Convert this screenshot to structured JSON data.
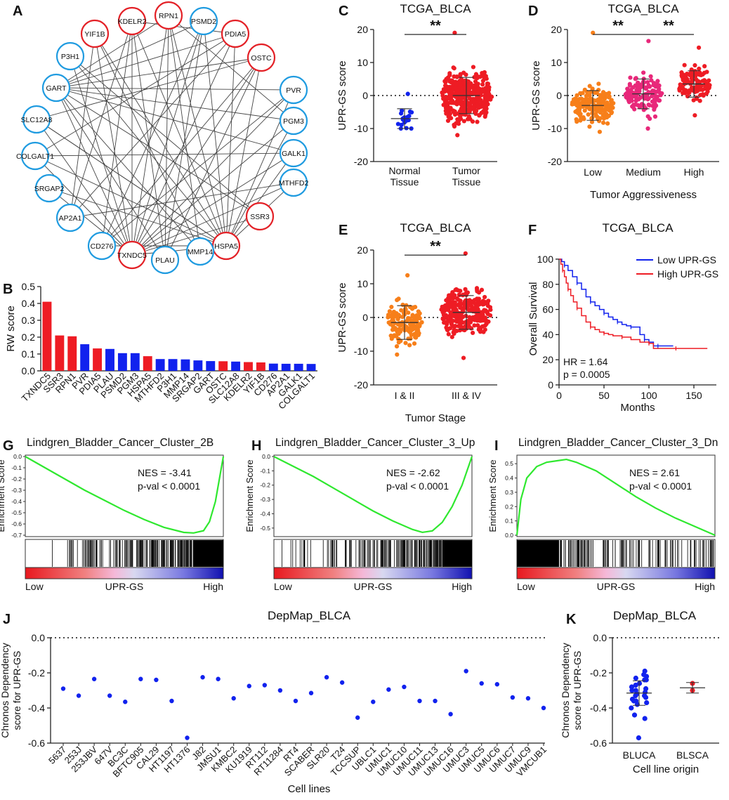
{
  "colors": {
    "red": "#ee1c24",
    "blue": "#1122ee",
    "orange": "#f77f1a",
    "pink": "#e8287a",
    "nodeBlue": "#1f9be0",
    "nodeRed": "#e32026",
    "green": "#2fe82f",
    "axis": "#222222"
  },
  "chart_data": [
    {
      "panel": "A",
      "type": "network",
      "label": "A",
      "nodes": [
        {
          "name": "RPN1",
          "group": "high"
        },
        {
          "name": "PSMD2",
          "group": "low"
        },
        {
          "name": "PDIA5",
          "group": "high"
        },
        {
          "name": "OSTC",
          "group": "high"
        },
        {
          "name": "PVR",
          "group": "low"
        },
        {
          "name": "PGM3",
          "group": "low"
        },
        {
          "name": "GALK1",
          "group": "low"
        },
        {
          "name": "MTHFD2",
          "group": "low"
        },
        {
          "name": "SSR3",
          "group": "high"
        },
        {
          "name": "HSPA5",
          "group": "high"
        },
        {
          "name": "MMP14",
          "group": "low"
        },
        {
          "name": "PLAU",
          "group": "low"
        },
        {
          "name": "TXNDC5",
          "group": "high"
        },
        {
          "name": "CD276",
          "group": "low"
        },
        {
          "name": "AP2A1",
          "group": "low"
        },
        {
          "name": "SRGAP2",
          "group": "low"
        },
        {
          "name": "COLGALT1",
          "group": "low"
        },
        {
          "name": "SLC12A8",
          "group": "low"
        },
        {
          "name": "GART",
          "group": "low"
        },
        {
          "name": "P3H1",
          "group": "low"
        },
        {
          "name": "YIF1B",
          "group": "high"
        },
        {
          "name": "KDELR2",
          "group": "high"
        }
      ],
      "edges": [
        [
          0,
          12
        ],
        [
          0,
          9
        ],
        [
          0,
          18
        ],
        [
          0,
          5
        ],
        [
          0,
          11
        ],
        [
          1,
          12
        ],
        [
          1,
          18
        ],
        [
          1,
          9
        ],
        [
          1,
          13
        ],
        [
          2,
          12
        ],
        [
          2,
          9
        ],
        [
          2,
          18
        ],
        [
          2,
          16
        ],
        [
          2,
          14
        ],
        [
          3,
          12
        ],
        [
          3,
          9
        ],
        [
          3,
          18
        ],
        [
          3,
          17
        ],
        [
          3,
          11
        ],
        [
          4,
          18
        ],
        [
          4,
          12
        ],
        [
          4,
          9
        ],
        [
          5,
          18
        ],
        [
          5,
          12
        ],
        [
          5,
          9
        ],
        [
          6,
          12
        ],
        [
          6,
          9
        ],
        [
          6,
          18
        ],
        [
          7,
          12
        ],
        [
          7,
          9
        ],
        [
          8,
          12
        ],
        [
          8,
          18
        ],
        [
          8,
          19
        ],
        [
          9,
          12
        ],
        [
          9,
          19
        ],
        [
          9,
          15
        ],
        [
          9,
          17
        ],
        [
          10,
          18
        ],
        [
          10,
          20
        ],
        [
          11,
          21
        ],
        [
          11,
          18
        ],
        [
          13,
          21
        ],
        [
          13,
          9
        ],
        [
          14,
          21
        ],
        [
          14,
          20
        ],
        [
          15,
          12
        ],
        [
          16,
          12
        ],
        [
          16,
          9
        ],
        [
          17,
          9
        ],
        [
          17,
          12
        ],
        [
          18,
          12
        ],
        [
          19,
          12
        ],
        [
          20,
          12
        ],
        [
          20,
          9
        ],
        [
          21,
          12
        ],
        [
          21,
          9
        ],
        [
          21,
          2
        ],
        [
          0,
          10
        ],
        [
          1,
          11
        ],
        [
          3,
          13
        ],
        [
          4,
          13
        ],
        [
          6,
          16
        ],
        [
          7,
          14
        ]
      ]
    },
    {
      "panel": "B",
      "type": "bar",
      "label": "B",
      "ylabel": "RW score",
      "ylim": [
        0,
        0.5
      ],
      "yticks": [
        "0.0",
        "0.1",
        "0.2",
        "0.3",
        "0.4",
        "0.5"
      ],
      "categories": [
        "TXNDC5",
        "SSR3",
        "RPN1",
        "PVR",
        "PDIA5",
        "PLAU",
        "PSMD2",
        "PGM3",
        "HSPA5",
        "MTHFD2",
        "P3H1",
        "MMP14",
        "SRGAP2",
        "GART",
        "OSTC",
        "SLC12A8",
        "KDELR2",
        "YIF1B",
        "CD276",
        "AP2A1",
        "GALK1",
        "COLGALT1"
      ],
      "values": [
        0.41,
        0.21,
        0.205,
        0.158,
        0.133,
        0.13,
        0.105,
        0.105,
        0.087,
        0.07,
        0.07,
        0.068,
        0.062,
        0.058,
        0.057,
        0.055,
        0.052,
        0.05,
        0.043,
        0.042,
        0.042,
        0.041
      ],
      "groups": [
        "high",
        "high",
        "high",
        "low",
        "high",
        "low",
        "low",
        "low",
        "high",
        "low",
        "low",
        "low",
        "low",
        "low",
        "high",
        "low",
        "high",
        "high",
        "low",
        "low",
        "low",
        "low"
      ]
    },
    {
      "panel": "C",
      "type": "scatter",
      "label": "C",
      "title": "TCGA_BLCA",
      "ylabel": "UPR-GS score",
      "ylim": [
        -20,
        20
      ],
      "yticks": [
        "-20",
        "-10",
        "0",
        "10",
        "20"
      ],
      "categories": [
        "Normal Tissue",
        "Tumor Tissue"
      ],
      "sig": "**",
      "groups": [
        {
          "name": "Normal Tissue",
          "mean": -7,
          "sd": 3,
          "n": 19,
          "min": -10,
          "max": 0.5,
          "color": "blue"
        },
        {
          "name": "Tumor Tissue",
          "mean": 0,
          "sd": 5.5,
          "n": 400,
          "min": -12,
          "max": 19,
          "color": "red"
        }
      ]
    },
    {
      "panel": "D",
      "type": "scatter",
      "label": "D",
      "title": "TCGA_BLCA",
      "ylabel": "UPR-GS score",
      "xlabel": "Tumor Aggressiveness",
      "ylim": [
        -20,
        20
      ],
      "yticks": [
        "-20",
        "-10",
        "0",
        "10",
        "20"
      ],
      "categories": [
        "Low",
        "Medium",
        "High"
      ],
      "sig": [
        "**",
        "**"
      ],
      "groups": [
        {
          "name": "Low",
          "mean": -3,
          "sd": 4.5,
          "n": 170,
          "min": -11,
          "max": 19,
          "color": "orange"
        },
        {
          "name": "Medium",
          "mean": 0.5,
          "sd": 4.5,
          "n": 140,
          "min": -10,
          "max": 16.5,
          "color": "pink"
        },
        {
          "name": "High",
          "mean": 3.5,
          "sd": 4,
          "n": 110,
          "min": -6,
          "max": 14.5,
          "color": "red"
        }
      ]
    },
    {
      "panel": "E",
      "type": "scatter",
      "label": "E",
      "title": "TCGA_BLCA",
      "ylabel": "UPR-GS score",
      "xlabel": "Tumor Stage",
      "ylim": [
        -20,
        20
      ],
      "yticks": [
        "-20",
        "-10",
        "0",
        "10",
        "20"
      ],
      "categories": [
        "I & II",
        "III & IV"
      ],
      "sig": "**",
      "groups": [
        {
          "name": "I & II",
          "mean": -1.5,
          "sd": 5,
          "n": 130,
          "min": -11,
          "max": 12.5,
          "color": "orange"
        },
        {
          "name": "III & IV",
          "mean": 1.5,
          "sd": 5,
          "n": 280,
          "min": -12,
          "max": 19,
          "color": "red"
        }
      ]
    },
    {
      "panel": "F",
      "type": "line",
      "label": "F",
      "title": "TCGA_BLCA",
      "ylabel": "Overall Survival",
      "xlabel": "Months",
      "xlim": [
        0,
        175
      ],
      "ylim": [
        0,
        105
      ],
      "xticks": [
        "0",
        "50",
        "100",
        "150"
      ],
      "yticks": [
        "0",
        "20",
        "40",
        "60",
        "80",
        "100"
      ],
      "hr": "HR = 1.64",
      "p": "p = 0.0005",
      "series": [
        {
          "name": "Low UPR-GS",
          "color": "blue",
          "x": [
            0,
            3,
            6,
            10,
            15,
            20,
            25,
            30,
            35,
            40,
            45,
            50,
            55,
            60,
            65,
            70,
            75,
            80,
            85,
            90,
            95,
            100,
            105,
            110,
            120,
            127
          ],
          "y": [
            100,
            98,
            95,
            91,
            86,
            81,
            76,
            70,
            66,
            63,
            60,
            57,
            54,
            52,
            50,
            48,
            47,
            46,
            46,
            40,
            36,
            34,
            31,
            31,
            31,
            31
          ]
        },
        {
          "name": "High UPR-GS",
          "color": "red",
          "x": [
            0,
            2,
            4,
            6,
            8,
            10,
            13,
            16,
            20,
            25,
            30,
            35,
            40,
            45,
            50,
            55,
            60,
            70,
            80,
            90,
            100,
            105,
            115,
            130,
            150,
            165
          ],
          "y": [
            100,
            96,
            91,
            86,
            81,
            76,
            71,
            66,
            61,
            55,
            50,
            46,
            44,
            42,
            41,
            40,
            39,
            38,
            36,
            34,
            33,
            29,
            29,
            29,
            29,
            29
          ]
        }
      ]
    },
    {
      "panel": "G",
      "type": "line",
      "label": "G",
      "title": "Lindgren_Bladder_Cancer_Cluster_2B",
      "ylabel": "Enrichment Score",
      "nes": "NES = -3.41",
      "pval": "p-val  < 0.0001",
      "ylim": [
        -0.7,
        0
      ],
      "yticks": [
        "0.0",
        "-0.1",
        "-0.2",
        "-0.3",
        "-0.4",
        "-0.5",
        "-0.6",
        "-0.7"
      ],
      "xlow": "Low",
      "xmid": "UPR-GS",
      "xhigh": "High",
      "x": [
        0,
        0.1,
        0.2,
        0.3,
        0.4,
        0.5,
        0.6,
        0.7,
        0.8,
        0.85,
        0.9,
        0.93,
        0.96,
        1.0
      ],
      "values": [
        0,
        -0.1,
        -0.2,
        -0.3,
        -0.39,
        -0.48,
        -0.56,
        -0.63,
        -0.675,
        -0.68,
        -0.66,
        -0.58,
        -0.4,
        0
      ]
    },
    {
      "panel": "H",
      "type": "line",
      "label": "H",
      "title": "Lindgren_Bladder_Cancer_Cluster_3_Up",
      "ylabel": "Enrichment Score",
      "nes": "NES = -2.62",
      "pval": "p-val  < 0.0001",
      "ylim": [
        -0.55,
        0
      ],
      "yticks": [
        "0.0",
        "-0.1",
        "-0.2",
        "-0.3",
        "-0.4",
        "-0.5"
      ],
      "xlow": "Low",
      "xmid": "UPR-GS",
      "xhigh": "High",
      "x": [
        0,
        0.1,
        0.2,
        0.3,
        0.4,
        0.5,
        0.6,
        0.7,
        0.75,
        0.8,
        0.85,
        0.9,
        0.95,
        1.0
      ],
      "values": [
        0,
        -0.07,
        -0.14,
        -0.22,
        -0.3,
        -0.38,
        -0.45,
        -0.51,
        -0.53,
        -0.52,
        -0.46,
        -0.35,
        -0.2,
        0
      ]
    },
    {
      "panel": "I",
      "type": "line",
      "label": "I",
      "title": "Lindgren_Bladder_Cancer_Cluster_3_Dn",
      "ylabel": "Enrichment Score",
      "nes": "NES = 2.61",
      "pval": "p-val  < 0.0001",
      "ylim": [
        0,
        0.55
      ],
      "yticks": [
        "0.0",
        "0.1",
        "0.2",
        "0.3",
        "0.4",
        "0.5"
      ],
      "xlow": "Low",
      "xmid": "UPR-GS",
      "xhigh": "High",
      "x": [
        0,
        0.02,
        0.05,
        0.1,
        0.15,
        0.2,
        0.25,
        0.3,
        0.4,
        0.5,
        0.6,
        0.7,
        0.8,
        0.9,
        0.95,
        1.0
      ],
      "values": [
        0,
        0.25,
        0.4,
        0.48,
        0.51,
        0.52,
        0.53,
        0.51,
        0.45,
        0.36,
        0.27,
        0.19,
        0.12,
        0.06,
        0.03,
        0
      ]
    },
    {
      "panel": "J",
      "type": "scatter",
      "label": "J",
      "title": "DepMap_BLCA",
      "ylabel": "Chronos Dependency score for UPR-GS",
      "xlabel": "Cell lines",
      "ylim": [
        -0.6,
        0
      ],
      "yticks": [
        "0.0",
        "-0.2",
        "-0.4",
        "-0.6"
      ],
      "categories": [
        "5637",
        "253J",
        "253JBV",
        "647V",
        "BC3C",
        "BFTC905",
        "CAL29",
        "HT1197",
        "HT1376",
        "J82",
        "JMSU1",
        "KMBC2",
        "KU1919",
        "RT112",
        "RT11284",
        "RT4",
        "SCABER",
        "SLR20",
        "T24",
        "TCCSUP",
        "UBLC1",
        "UMUC1",
        "UMUC10",
        "UMUC11",
        "UMUC13",
        "UMUC16",
        "UMUC3",
        "UMUC5",
        "UMUC6",
        "UMUC7",
        "UMUC9",
        "VMCUB1"
      ],
      "values": [
        -0.29,
        -0.33,
        -0.235,
        -0.33,
        -0.365,
        -0.235,
        -0.24,
        -0.36,
        -0.57,
        -0.225,
        -0.235,
        -0.345,
        -0.275,
        -0.27,
        -0.3,
        -0.36,
        -0.315,
        -0.225,
        -0.255,
        -0.455,
        -0.365,
        -0.295,
        -0.28,
        -0.36,
        -0.36,
        -0.435,
        -0.19,
        -0.26,
        -0.265,
        -0.34,
        -0.345,
        -0.4
      ]
    },
    {
      "panel": "K",
      "type": "scatter",
      "label": "K",
      "title": "DepMap_BLCA",
      "ylabel": "Chronos Dependency score for UPR-GS",
      "xlabel": "Cell line origin",
      "ylim": [
        -0.6,
        0
      ],
      "yticks": [
        "0.0",
        "-0.2",
        "-0.4",
        "-0.6"
      ],
      "categories": [
        "BLUCA",
        "BLSCA"
      ],
      "groups": [
        {
          "name": "BLUCA",
          "color": "blue",
          "values": [
            -0.19,
            -0.21,
            -0.22,
            -0.23,
            -0.24,
            -0.24,
            -0.26,
            -0.27,
            -0.28,
            -0.29,
            -0.3,
            -0.3,
            -0.31,
            -0.32,
            -0.33,
            -0.33,
            -0.34,
            -0.35,
            -0.36,
            -0.36,
            -0.37,
            -0.38,
            -0.4,
            -0.44,
            -0.46,
            -0.57
          ],
          "mean": -0.315,
          "sd": 0.07
        },
        {
          "name": "BLSCA",
          "color": "red",
          "values": [
            -0.26,
            -0.3
          ],
          "mean": -0.285,
          "sd": 0.03
        }
      ]
    }
  ]
}
